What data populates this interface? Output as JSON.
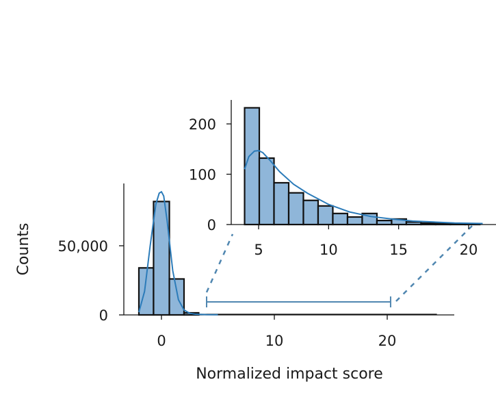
{
  "chart_data": [
    {
      "id": "main",
      "type": "bar",
      "xlabel": "Normalized impact score",
      "ylabel": "Counts",
      "xlim": [
        -3.5,
        26
      ],
      "ylim": [
        0,
        95000
      ],
      "xticks": [
        0,
        10,
        20
      ],
      "yticks": [
        0,
        50000
      ],
      "ytick_labels": [
        "0",
        "50,000"
      ],
      "bins": [
        {
          "x0": -2,
          "x1": -0.7,
          "value": 34000
        },
        {
          "x0": -0.7,
          "x1": 0.7,
          "value": 82000
        },
        {
          "x0": 0.7,
          "x1": 2.0,
          "value": 26000
        },
        {
          "x0": 2.0,
          "x1": 3.3,
          "value": 1500
        }
      ],
      "kde": {
        "x": [
          -2,
          -1.5,
          -1,
          -0.5,
          -0.2,
          0,
          0.2,
          0.5,
          1,
          1.5,
          2,
          2.5,
          3,
          4,
          5
        ],
        "y": [
          2000,
          17000,
          50000,
          80000,
          88000,
          89000,
          86000,
          68000,
          32000,
          11000,
          3500,
          1200,
          500,
          200,
          100
        ]
      },
      "bracket": {
        "x_start": 4,
        "x_end": 20.3
      }
    },
    {
      "id": "inset",
      "type": "bar",
      "xlim": [
        3.7,
        21
      ],
      "ylim": [
        0,
        245
      ],
      "xticks": [
        5,
        10,
        15,
        20
      ],
      "yticks": [
        0,
        100,
        200
      ],
      "bin_start": 4,
      "bin_width": 1.05,
      "values": [
        232,
        132,
        83,
        63,
        48,
        37,
        22,
        15,
        22,
        8,
        11,
        5,
        3,
        3,
        2,
        1
      ],
      "kde": {
        "x": [
          4.0,
          4.3,
          4.7,
          5.0,
          5.3,
          5.8,
          6.5,
          7.5,
          8.5,
          10,
          11.5,
          13,
          14.5,
          16,
          17.5,
          19,
          21
        ],
        "y": [
          110,
          135,
          146,
          147,
          143,
          128,
          105,
          80,
          62,
          40,
          25,
          16,
          11,
          7,
          5,
          3,
          2
        ]
      }
    }
  ]
}
